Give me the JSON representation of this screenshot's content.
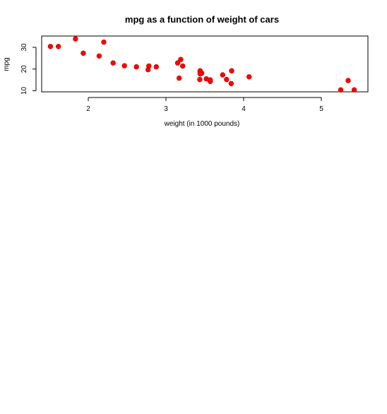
{
  "chart_data": {
    "type": "scatter",
    "title": "mpg as a function of weight of cars",
    "xlabel": "weight (in 1000 pounds)",
    "ylabel": "mpg",
    "xlim": [
      1.4,
      5.6
    ],
    "ylim": [
      9.5,
      35.2
    ],
    "xticks": [
      2,
      3,
      4,
      5
    ],
    "yticks": [
      10,
      20,
      30
    ],
    "point_color": "#ff0000",
    "grid": false,
    "legend": "none",
    "points": [
      {
        "x": 2.62,
        "y": 21.0
      },
      {
        "x": 2.875,
        "y": 21.0
      },
      {
        "x": 2.32,
        "y": 22.8
      },
      {
        "x": 3.215,
        "y": 21.4
      },
      {
        "x": 3.44,
        "y": 18.7
      },
      {
        "x": 3.46,
        "y": 18.1
      },
      {
        "x": 3.57,
        "y": 14.3
      },
      {
        "x": 3.19,
        "y": 24.4
      },
      {
        "x": 3.15,
        "y": 22.8
      },
      {
        "x": 3.44,
        "y": 19.2
      },
      {
        "x": 3.44,
        "y": 17.8
      },
      {
        "x": 4.07,
        "y": 16.4
      },
      {
        "x": 3.73,
        "y": 17.3
      },
      {
        "x": 3.78,
        "y": 15.2
      },
      {
        "x": 5.25,
        "y": 10.4
      },
      {
        "x": 5.424,
        "y": 10.4
      },
      {
        "x": 5.345,
        "y": 14.7
      },
      {
        "x": 2.2,
        "y": 32.4
      },
      {
        "x": 1.615,
        "y": 30.4
      },
      {
        "x": 1.835,
        "y": 33.9
      },
      {
        "x": 2.465,
        "y": 21.5
      },
      {
        "x": 3.52,
        "y": 15.5
      },
      {
        "x": 3.435,
        "y": 15.2
      },
      {
        "x": 3.84,
        "y": 13.3
      },
      {
        "x": 3.845,
        "y": 19.2
      },
      {
        "x": 1.935,
        "y": 27.3
      },
      {
        "x": 2.14,
        "y": 26.0
      },
      {
        "x": 1.513,
        "y": 30.4
      },
      {
        "x": 3.17,
        "y": 15.8
      },
      {
        "x": 2.77,
        "y": 19.7
      },
      {
        "x": 3.57,
        "y": 15.0
      },
      {
        "x": 2.78,
        "y": 21.4
      }
    ]
  }
}
